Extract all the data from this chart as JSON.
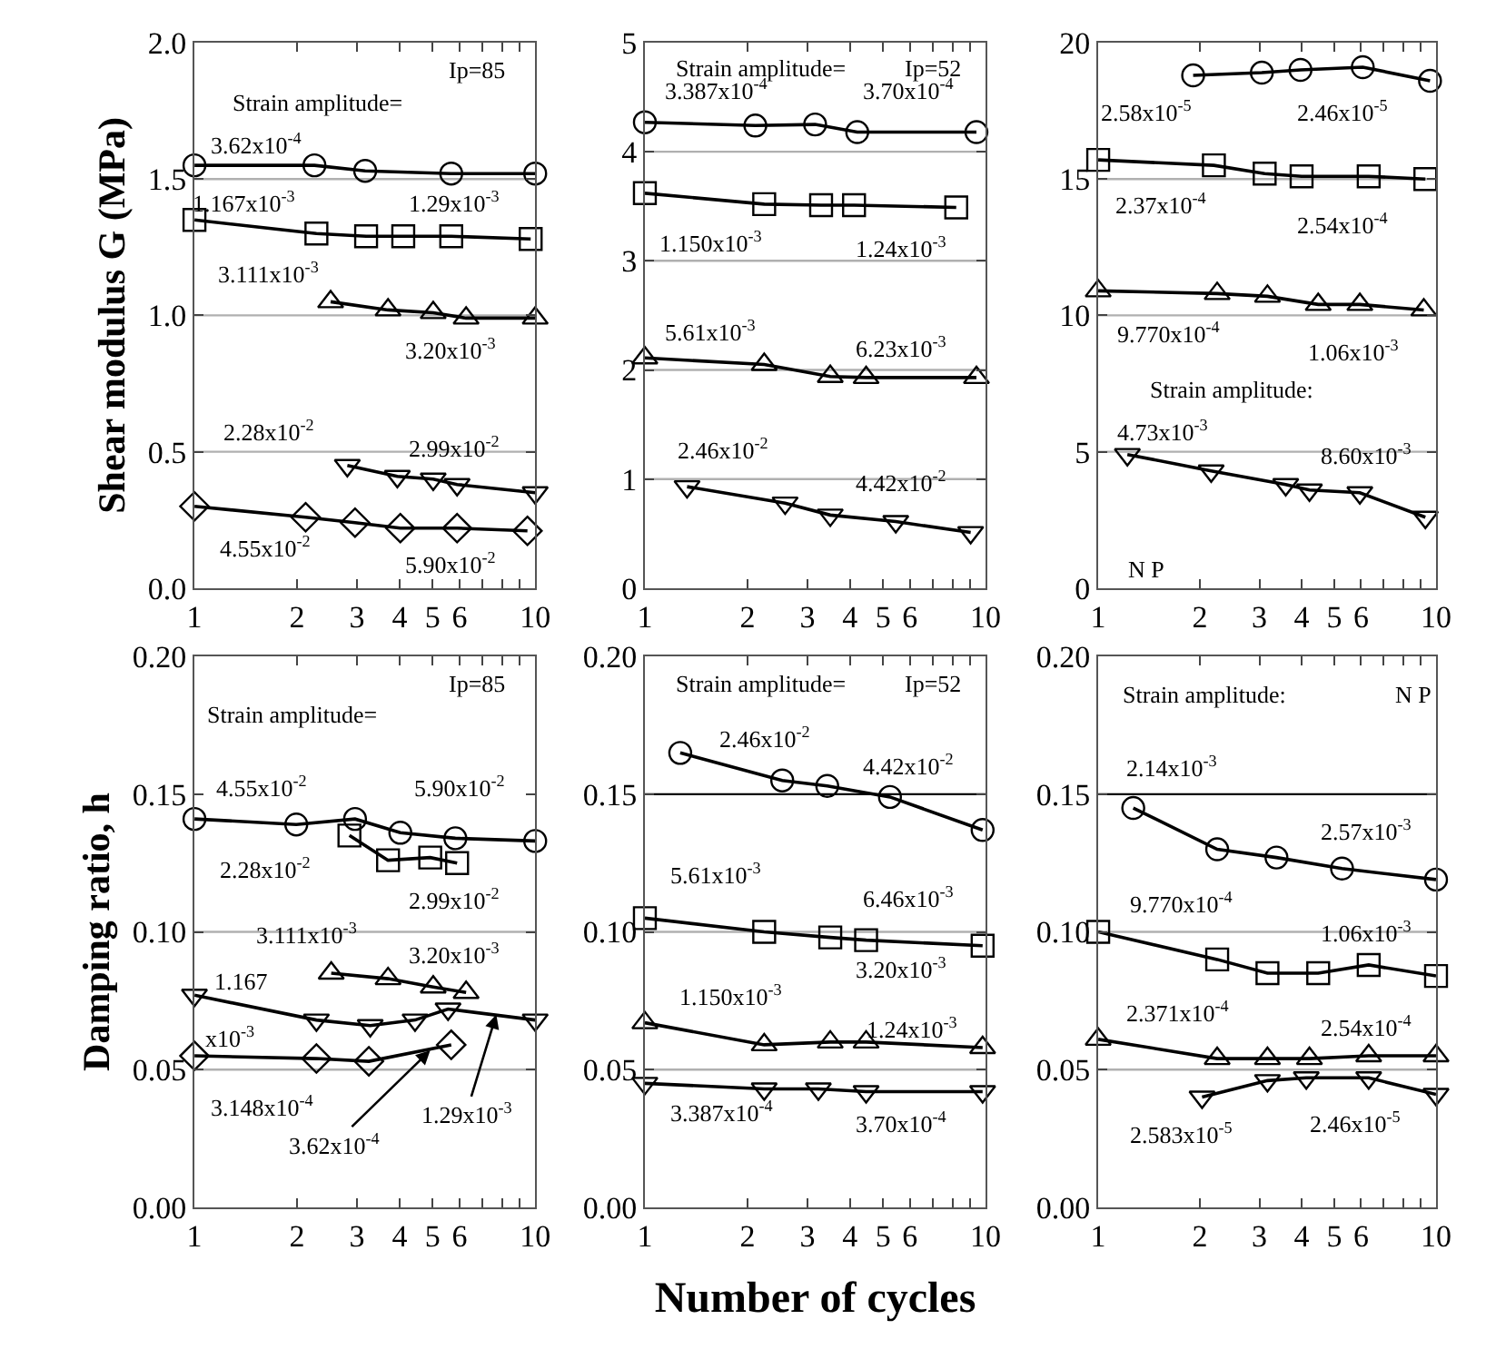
{
  "chart_data": [
    {
      "type": "line",
      "ylabel": "Shear modulus G (MPa)",
      "log": "x",
      "grid": false,
      "line_style": "solid",
      "xlim": [
        1,
        10
      ],
      "xticks": [
        1,
        2,
        3,
        4,
        5,
        6,
        {
          "value": 7,
          "label": null
        },
        {
          "value": 8,
          "label": null
        },
        {
          "value": 9,
          "label": null
        },
        10
      ],
      "ylim": [
        0,
        2.0
      ],
      "yticks": [
        {
          "value": 0,
          "label": "0.0"
        },
        {
          "value": 0.5,
          "label": "0.5"
        },
        {
          "value": 1.0,
          "label": "1.0"
        },
        {
          "value": 1.5,
          "label": "1.5"
        },
        {
          "value": 2.0,
          "label": "2.0"
        }
      ],
      "ref_lines": [
        {
          "axis": "y",
          "value": 1.5,
          "color": "#b0b0b0"
        },
        {
          "axis": "y",
          "value": 1.0,
          "color": "#b0b0b0"
        },
        {
          "axis": "y",
          "value": 0.5,
          "color": "#b0b0b0"
        }
      ],
      "series": [
        {
          "color": "#000000",
          "marker": "circle",
          "x": [
            1,
            2.25,
            3.17,
            5.67,
            10
          ],
          "values": [
            1.55,
            1.55,
            1.53,
            1.52,
            1.52
          ]
        },
        {
          "color": "#000000",
          "marker": "square",
          "x": [
            1,
            2.28,
            3.19,
            4.1,
            5.67,
            9.7
          ],
          "values": [
            1.35,
            1.3,
            1.29,
            1.29,
            1.29,
            1.28
          ]
        },
        {
          "color": "#000000",
          "marker": "triangle",
          "x": [
            2.51,
            3.7,
            5.02,
            6.27,
            10
          ],
          "values": [
            1.05,
            1.02,
            1.01,
            0.99,
            0.99
          ]
        },
        {
          "color": "#000000",
          "marker": "triangle-down",
          "x": [
            2.81,
            3.94,
            5.02,
            5.9,
            10
          ],
          "values": [
            0.45,
            0.41,
            0.4,
            0.38,
            0.35
          ]
        },
        {
          "color": "#000000",
          "marker": "diamond",
          "x": [
            1,
            2.12,
            2.96,
            4.02,
            5.9,
            9.49
          ],
          "values": [
            0.3,
            0.26,
            0.24,
            0.22,
            0.22,
            0.21
          ]
        }
      ],
      "annotations": [
        "Ip=85",
        "Strain amplitude=",
        "3.62x10$^{-4}$",
        "1.167x10$^{-3}$",
        "1.29x10$^{-3}$",
        "3.111x10$^{-3}$",
        "3.20x10$^{-3}$",
        "2.28x10$^{-2}$",
        "2.99x10$^{-2}$",
        "4.55x10$^{-2}$",
        "5.90x10$^{-2}$"
      ]
    },
    {
      "type": "line",
      "log": "x",
      "grid": false,
      "line_style": "solid",
      "xlim": [
        1,
        10
      ],
      "xticks": [
        1,
        2,
        3,
        4,
        5,
        6,
        {
          "value": 7,
          "label": null
        },
        {
          "value": 8,
          "label": null
        },
        {
          "value": 9,
          "label": null
        },
        10
      ],
      "ylim": [
        0,
        5
      ],
      "yticks": [
        0,
        1,
        2,
        3,
        4,
        5
      ],
      "ref_lines": [
        {
          "axis": "y",
          "value": 4,
          "color": "#b0b0b0"
        },
        {
          "axis": "y",
          "value": 3,
          "color": "#b0b0b0"
        },
        {
          "axis": "y",
          "value": 2,
          "color": "#b0b0b0"
        },
        {
          "axis": "y",
          "value": 1,
          "color": "#b0b0b0"
        }
      ],
      "series": [
        {
          "color": "#000000",
          "marker": "circle",
          "x": [
            1,
            2.11,
            3.16,
            4.2,
            9.4
          ],
          "values": [
            4.27,
            4.24,
            4.25,
            4.18,
            4.18
          ]
        },
        {
          "color": "#000000",
          "marker": "square",
          "x": [
            1,
            2.24,
            3.29,
            4.11,
            8.2
          ],
          "values": [
            3.62,
            3.52,
            3.51,
            3.51,
            3.49
          ]
        },
        {
          "color": "#000000",
          "marker": "triangle",
          "x": [
            1,
            2.24,
            3.5,
            4.46,
            9.4
          ],
          "values": [
            2.11,
            2.05,
            1.94,
            1.93,
            1.93
          ]
        },
        {
          "color": "#000000",
          "marker": "triangle-down",
          "x": [
            1.33,
            2.58,
            3.5,
            5.45,
            9.04
          ],
          "values": [
            0.93,
            0.78,
            0.67,
            0.61,
            0.51
          ]
        }
      ],
      "annotations": [
        "Strain amplitude=",
        "Ip=52",
        "3.387x10$^{-4}$",
        "3.70x10$^{-4}$",
        "1.150x10$^{-3}$",
        "1.24x10$^{-3}$",
        "5.61x10$^{-3}$",
        "6.23x10$^{-3}$",
        "2.46x10$^{-2}$",
        "4.42x10$^{-2}$"
      ]
    },
    {
      "type": "line",
      "log": "x",
      "grid": false,
      "line_style": "solid",
      "xlim": [
        1,
        10
      ],
      "xticks": [
        1,
        2,
        3,
        4,
        5,
        6,
        {
          "value": 7,
          "label": null
        },
        {
          "value": 8,
          "label": null
        },
        {
          "value": 9,
          "label": null
        },
        10
      ],
      "ylim": [
        0,
        20
      ],
      "yticks": [
        0,
        5,
        10,
        15,
        20
      ],
      "ref_lines": [
        {
          "axis": "y",
          "value": 15,
          "color": "#b0b0b0"
        },
        {
          "axis": "y",
          "value": 10,
          "color": "#b0b0b0"
        },
        {
          "axis": "y",
          "value": 5,
          "color": "#b0b0b0"
        }
      ],
      "series": [
        {
          "color": "#000000",
          "marker": "circle",
          "x": [
            1.91,
            3.05,
            3.97,
            6.07,
            9.6
          ],
          "values": [
            18.8,
            18.9,
            19.0,
            19.1,
            18.6
          ]
        },
        {
          "color": "#000000",
          "marker": "square",
          "x": [
            1,
            2.2,
            3.11,
            4.0,
            6.32,
            9.3
          ],
          "values": [
            15.7,
            15.5,
            15.2,
            15.1,
            15.1,
            15.0
          ]
        },
        {
          "color": "#000000",
          "marker": "triangle",
          "x": [
            1,
            2.25,
            3.17,
            4.48,
            5.95,
            9.2
          ],
          "values": [
            10.9,
            10.8,
            10.7,
            10.4,
            10.4,
            10.2
          ]
        },
        {
          "color": "#000000",
          "marker": "triangle-down",
          "x": [
            1.22,
            2.16,
            3.59,
            4.22,
            5.95,
            9.3
          ],
          "values": [
            4.9,
            4.3,
            3.8,
            3.6,
            3.5,
            2.6
          ]
        }
      ],
      "annotations": [
        "2.58x10$^{-5}$",
        "2.46x10$^{-5}$",
        "2.37x10$^{-4}$",
        "2.54x10$^{-4}$",
        "9.770x10$^{-4}$",
        "1.06x10$^{-3}$",
        "Strain amplitude:",
        "4.73x10$^{-3}$",
        "8.60x10$^{-3}$",
        "N P"
      ]
    },
    {
      "type": "line",
      "ylabel": "Damping ratio, h",
      "log": "x",
      "grid": false,
      "line_style": "solid",
      "xlim": [
        1,
        10
      ],
      "xticks": [
        1,
        2,
        3,
        4,
        5,
        6,
        {
          "value": 7,
          "label": null
        },
        {
          "value": 8,
          "label": null
        },
        {
          "value": 9,
          "label": null
        },
        10
      ],
      "ylim": [
        0,
        0.2
      ],
      "yticks": [
        {
          "value": 0,
          "label": "0.00"
        },
        {
          "value": 0.05,
          "label": "0.05"
        },
        {
          "value": 0.1,
          "label": "0.10"
        },
        {
          "value": 0.15,
          "label": "0.15"
        },
        {
          "value": 0.2,
          "label": "0.20"
        }
      ],
      "ref_lines": [
        {
          "axis": "y",
          "value": 0.1,
          "color": "#b0b0b0"
        },
        {
          "axis": "y",
          "value": 0.05,
          "color": "#b0b0b0"
        }
      ],
      "series": [
        {
          "color": "#000000",
          "marker": "circle",
          "x": [
            1,
            1.99,
            2.96,
            4.02,
            5.83,
            10
          ],
          "values": [
            0.141,
            0.139,
            0.141,
            0.136,
            0.134,
            0.133
          ]
        },
        {
          "color": "#000000",
          "marker": "square",
          "x": [
            2.85,
            3.7,
            4.92,
            5.9
          ],
          "values": [
            0.135,
            0.126,
            0.127,
            0.125
          ]
        },
        {
          "color": "#000000",
          "marker": "triangle",
          "x": [
            2.52,
            3.7,
            5.02,
            6.27
          ],
          "values": [
            0.085,
            0.083,
            0.08,
            0.078
          ]
        },
        {
          "color": "#000000",
          "marker": "triangle-down",
          "x": [
            1,
            2.28,
            3.28,
            4.44,
            5.55,
            10
          ],
          "values": [
            0.077,
            0.068,
            0.066,
            0.068,
            0.072,
            0.068
          ]
        },
        {
          "color": "#000000",
          "marker": "diamond",
          "x": [
            1,
            2.28,
            3.25,
            5.67
          ],
          "values": [
            0.055,
            0.054,
            0.053,
            0.059
          ]
        }
      ],
      "annotations": [
        "Ip=85",
        "Strain amplitude=",
        "4.55x10$^{-2}$",
        "5.90x10$^{-2}$",
        "2.28x10$^{-2}$",
        "2.99x10$^{-2}$",
        "3.111x10$^{-3}$",
        "3.20x10$^{-3}$",
        "1.167",
        "x10$^{-3}$",
        "3.148x10$^{-4}$",
        {
          "text": "3.62x10$^{-4}$",
          "x": 4.92,
          "y": 0.057
        },
        {
          "text": "1.29x10$^{-3}$",
          "x": 7.69,
          "y": 0.07
        }
      ]
    },
    {
      "type": "line",
      "xlabel": "Number of cycles",
      "log": "x",
      "grid": false,
      "line_style": "solid",
      "xlim": [
        1,
        10
      ],
      "xticks": [
        1,
        2,
        3,
        4,
        5,
        6,
        {
          "value": 7,
          "label": null
        },
        {
          "value": 8,
          "label": null
        },
        {
          "value": 9,
          "label": null
        },
        10
      ],
      "ylim": [
        0,
        0.2
      ],
      "yticks": [
        {
          "value": 0,
          "label": "0.00"
        },
        {
          "value": 0.05,
          "label": "0.05"
        },
        {
          "value": 0.1,
          "label": "0.10"
        },
        {
          "value": 0.15,
          "label": "0.15"
        },
        {
          "value": 0.2,
          "label": "0.20"
        }
      ],
      "ref_lines": [
        {
          "axis": "y",
          "value": 0.15,
          "color": "#000000"
        },
        {
          "axis": "y",
          "value": 0.1,
          "color": "#b0b0b0"
        },
        {
          "axis": "y",
          "value": 0.05,
          "color": "#b0b0b0"
        }
      ],
      "series": [
        {
          "color": "#000000",
          "marker": "circle",
          "x": [
            1.27,
            2.53,
            3.43,
            5.24,
            9.8
          ],
          "values": [
            0.165,
            0.155,
            0.153,
            0.149,
            0.137
          ]
        },
        {
          "color": "#000000",
          "marker": "square",
          "x": [
            1,
            2.24,
            3.5,
            4.46,
            9.8
          ],
          "values": [
            0.105,
            0.1,
            0.098,
            0.097,
            0.095
          ]
        },
        {
          "color": "#000000",
          "marker": "triangle",
          "x": [
            1,
            2.24,
            3.5,
            4.46,
            9.8
          ],
          "values": [
            0.067,
            0.059,
            0.06,
            0.06,
            0.058
          ]
        },
        {
          "color": "#000000",
          "marker": "triangle-down",
          "x": [
            1,
            2.24,
            3.23,
            4.46,
            9.8
          ],
          "values": [
            0.045,
            0.043,
            0.043,
            0.042,
            0.042
          ]
        }
      ],
      "annotations": [
        "Strain amplitude=",
        "Ip=52",
        "2.46x10$^{-2}$",
        "4.42x10$^{-2}$",
        "5.61x10$^{-3}$",
        "6.46x10$^{-3}$",
        "3.20x10$^{-3}$",
        "1.150x10$^{-3}$",
        "1.24x10$^{-3}$",
        "3.387x10$^{-4}$",
        "3.70x10$^{-4}$"
      ]
    },
    {
      "type": "line",
      "log": "x",
      "grid": false,
      "line_style": "solid",
      "xlim": [
        1,
        10
      ],
      "xticks": [
        1,
        2,
        3,
        4,
        5,
        6,
        {
          "value": 7,
          "label": null
        },
        {
          "value": 8,
          "label": null
        },
        {
          "value": 9,
          "label": null
        },
        10
      ],
      "ylim": [
        0,
        0.2
      ],
      "yticks": [
        {
          "value": 0,
          "label": "0.00"
        },
        {
          "value": 0.05,
          "label": "0.05"
        },
        {
          "value": 0.1,
          "label": "0.10"
        },
        {
          "value": 0.15,
          "label": "0.15"
        },
        {
          "value": 0.2,
          "label": "0.20"
        }
      ],
      "ref_lines": [
        {
          "axis": "y",
          "value": 0.15,
          "color": "#000000"
        },
        {
          "axis": "y",
          "value": 0.1,
          "color": "#b0b0b0"
        },
        {
          "axis": "y",
          "value": 0.05,
          "color": "#b0b0b0"
        }
      ],
      "series": [
        {
          "color": "#000000",
          "marker": "circle",
          "x": [
            1.27,
            2.25,
            3.37,
            5.27,
            10
          ],
          "values": [
            0.145,
            0.13,
            0.127,
            0.123,
            0.119
          ]
        },
        {
          "color": "#000000",
          "marker": "square",
          "x": [
            1,
            2.25,
            3.17,
            4.48,
            6.32,
            10
          ],
          "values": [
            0.1,
            0.09,
            0.085,
            0.085,
            0.088,
            0.084
          ]
        },
        {
          "color": "#000000",
          "marker": "triangle",
          "x": [
            1,
            2.25,
            3.17,
            4.22,
            6.32,
            10
          ],
          "values": [
            0.061,
            0.054,
            0.054,
            0.054,
            0.055,
            0.055
          ]
        },
        {
          "color": "#000000",
          "marker": "triangle-down",
          "x": [
            2.03,
            3.17,
            4.13,
            6.32,
            10
          ],
          "values": [
            0.04,
            0.046,
            0.047,
            0.047,
            0.041
          ]
        }
      ],
      "annotations": [
        "Strain amplitude:",
        "N P",
        "2.14x10$^{-3}$",
        "2.57x10$^{-3}$",
        "9.770x10$^{-4}$",
        "1.06x10$^{-3}$",
        "2.371x10$^{-4}$",
        "2.54x10$^{-4}$",
        "2.583x10$^{-5}$",
        "2.46x10$^{-5}$"
      ]
    }
  ]
}
